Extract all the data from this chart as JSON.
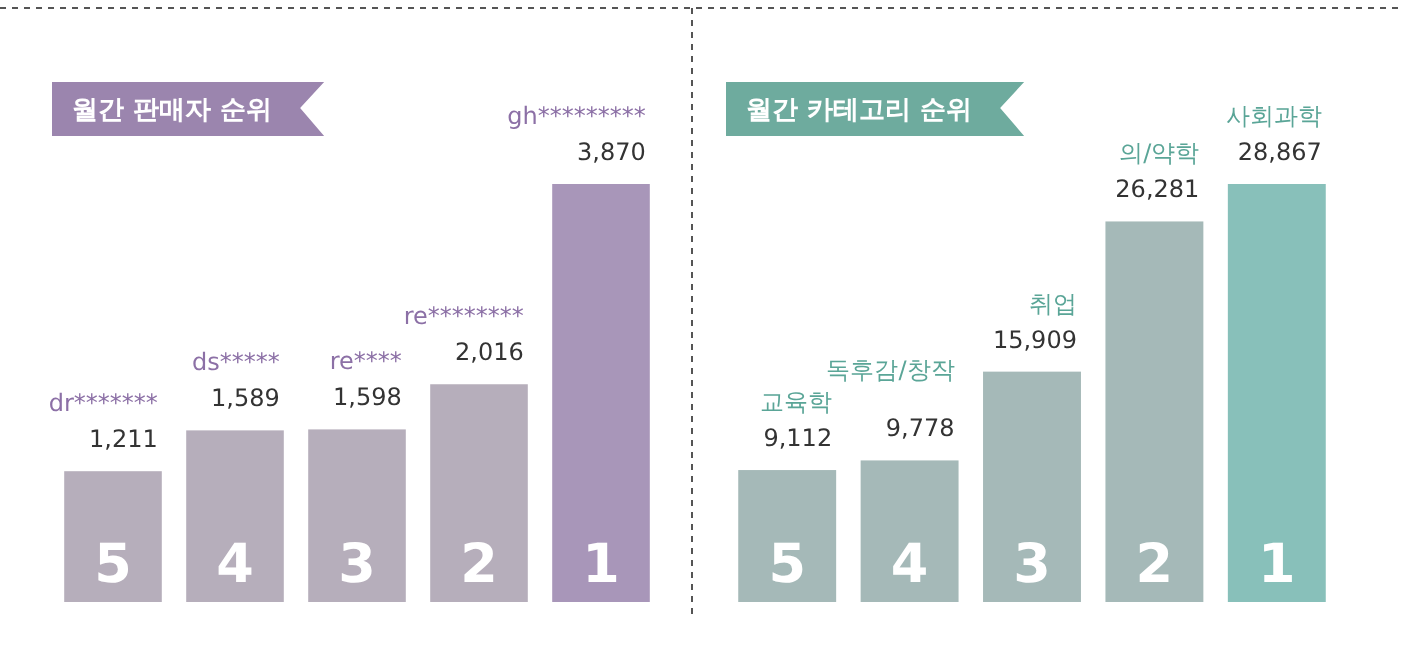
{
  "chart_data": [
    {
      "type": "bar",
      "title": "월간 판매자 순위",
      "categories": [
        "dr*******",
        "ds*****",
        "re****",
        "re********",
        "gh*********"
      ],
      "values": [
        1211,
        1589,
        1598,
        2016,
        3870
      ],
      "colors": [
        "#b6aebb",
        "#b6aebb",
        "#b6aebb",
        "#b6aebb",
        "#a896b9"
      ],
      "value_labels": [
        "1,211",
        "1,589",
        "1,598",
        "2,016",
        "3,870"
      ],
      "annotations": [
        "5",
        "4",
        "3",
        "2",
        "1"
      ]
    },
    {
      "type": "bar",
      "title": "월간 카테고리 순위",
      "categories": [
        "교육학",
        "독후감/창작",
        "취업",
        "의/약학",
        "사회과학"
      ],
      "values": [
        9112,
        9778,
        15909,
        26281,
        28867
      ],
      "colors": [
        "#a5b9b8",
        "#a5b9b8",
        "#a5b9b8",
        "#a5b9b8",
        "#88c0ba"
      ],
      "value_labels": [
        "9,112",
        "9,778",
        "15,909",
        "26,281",
        "28,867"
      ],
      "annotations": [
        "5",
        "4",
        "3",
        "2",
        "1"
      ]
    }
  ]
}
